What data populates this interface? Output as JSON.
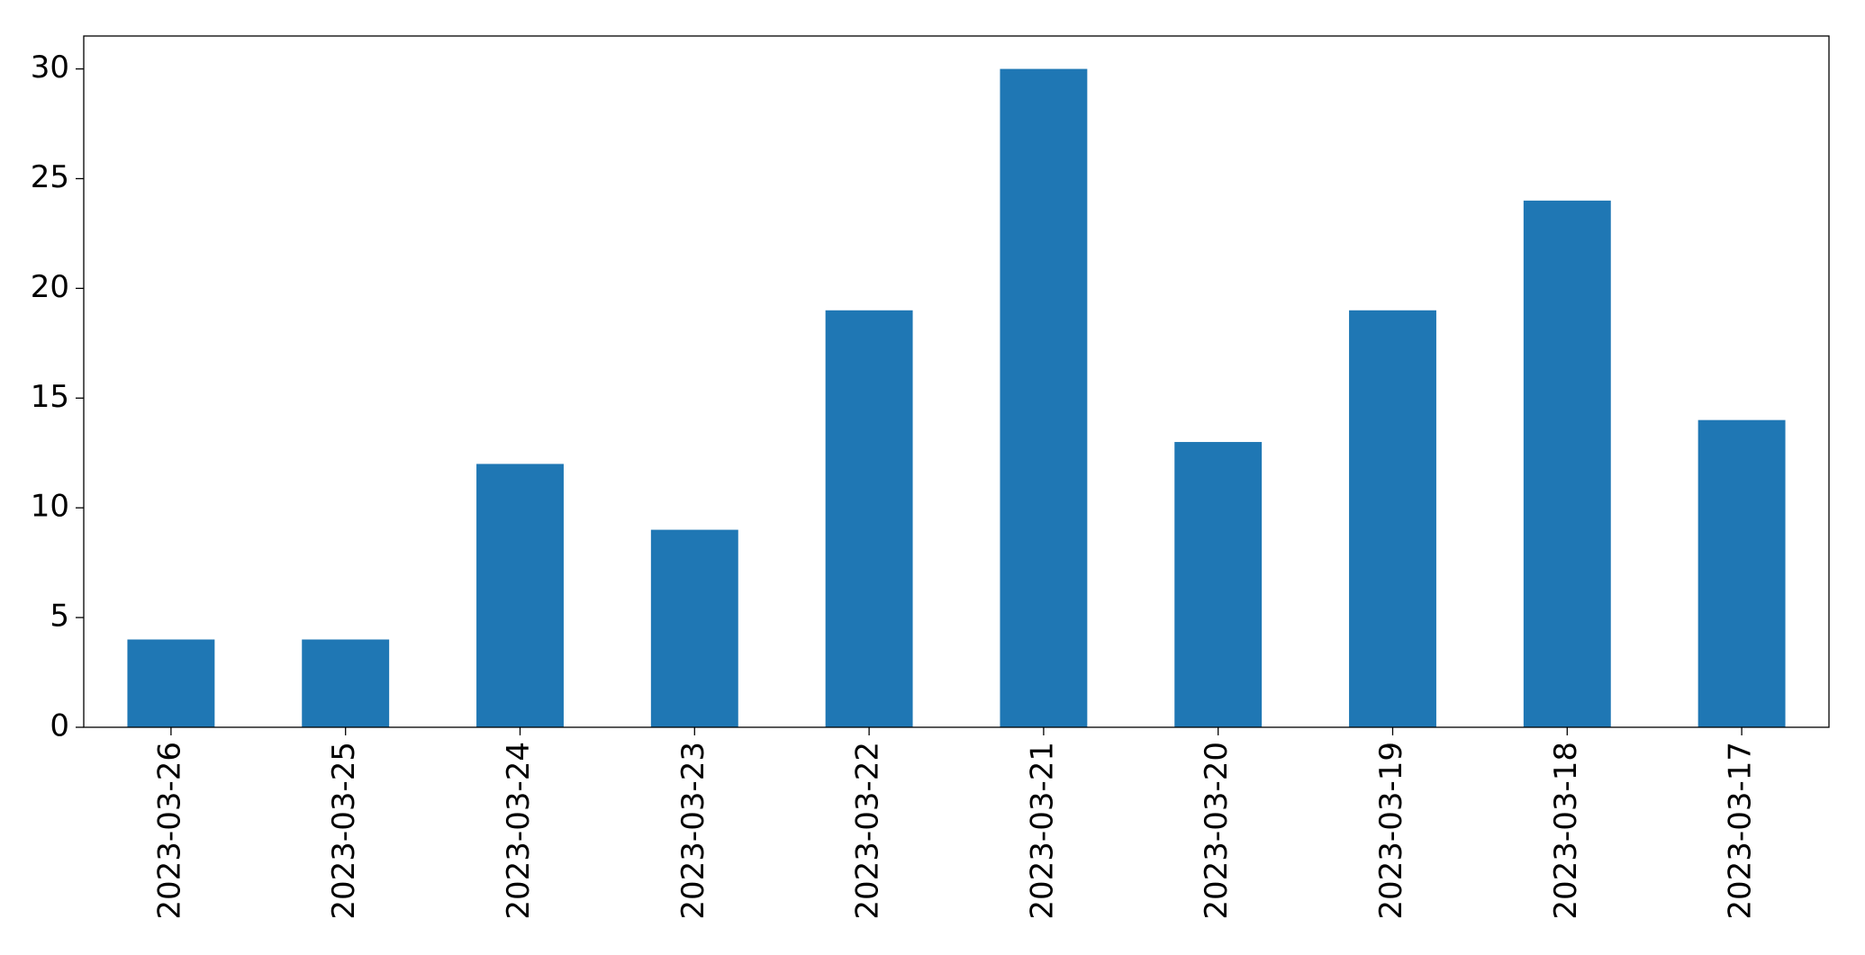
{
  "chart_data": {
    "type": "bar",
    "categories": [
      "2023-03-26",
      "2023-03-25",
      "2023-03-24",
      "2023-03-23",
      "2023-03-22",
      "2023-03-21",
      "2023-03-20",
      "2023-03-19",
      "2023-03-18",
      "2023-03-17"
    ],
    "values": [
      4,
      4,
      12,
      9,
      19,
      30,
      13,
      19,
      24,
      14
    ],
    "color": "#1f77b4",
    "ylim": [
      0,
      31.5
    ],
    "yticks": [
      0,
      5,
      10,
      15,
      20,
      25,
      30
    ],
    "grid": false
  }
}
